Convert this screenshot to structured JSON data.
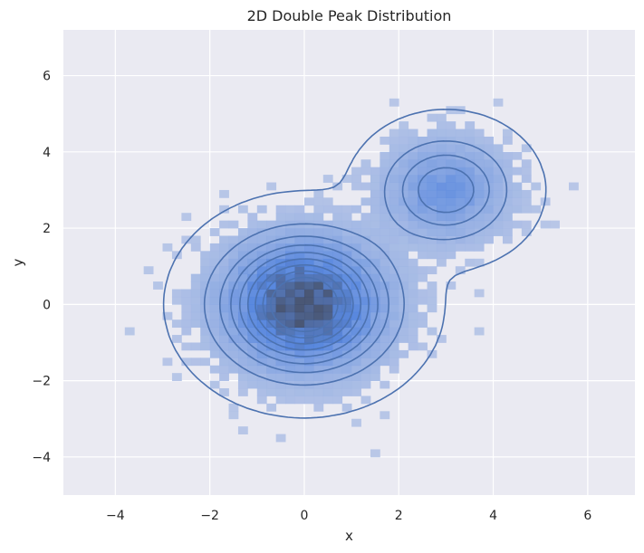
{
  "chart_data": {
    "type": "heatmap",
    "subtype": "2d-histogram-with-kde-contours",
    "title": "2D Double Peak Distribution",
    "xlabel": "x",
    "ylabel": "y",
    "xlim": [
      -5.1,
      7.0
    ],
    "ylim": [
      -5.0,
      7.2
    ],
    "x_ticks": [
      -4,
      -2,
      0,
      2,
      4,
      6
    ],
    "y_ticks": [
      -4,
      -2,
      0,
      2,
      4,
      6
    ],
    "x_tick_labels": [
      "−4",
      "−2",
      "0",
      "2",
      "4",
      "6"
    ],
    "y_tick_labels": [
      "−4",
      "−2",
      "0",
      "2",
      "4",
      "6"
    ],
    "grid": true,
    "style": "darkgrid",
    "bin_width": 0.2,
    "components": [
      {
        "center": [
          0.0,
          0.0
        ],
        "sd": [
          1.0,
          1.0
        ],
        "weight": 0.8
      },
      {
        "center": [
          3.0,
          3.0
        ],
        "sd": [
          0.8,
          0.8
        ],
        "weight": 0.2
      }
    ],
    "contour_levels": 9,
    "colors": {
      "background": "#eaeaf2",
      "grid": "#ffffff",
      "contour": "#4c72b0",
      "hist_low": "#b4c3e6",
      "hist_mid": "#4c7fdc",
      "hist_high": "#3c4a6a"
    }
  }
}
